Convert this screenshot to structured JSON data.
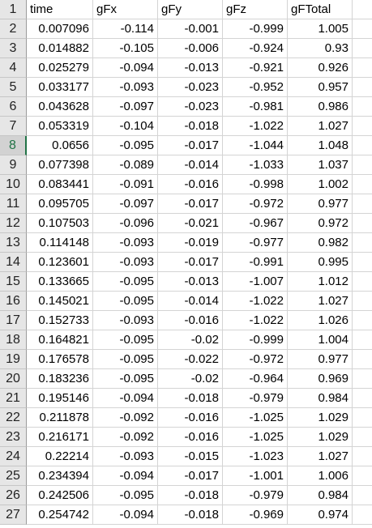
{
  "sheet": {
    "headers": [
      "time",
      "gFx",
      "gFy",
      "gFz",
      "gFTotal"
    ],
    "header_row_number": "1",
    "selected_row": "8",
    "rows": [
      {
        "n": "2",
        "cells": [
          "0.007096",
          "-0.114",
          "-0.001",
          "-0.999",
          "1.005"
        ]
      },
      {
        "n": "3",
        "cells": [
          "0.014882",
          "-0.105",
          "-0.006",
          "-0.924",
          "0.93"
        ]
      },
      {
        "n": "4",
        "cells": [
          "0.025279",
          "-0.094",
          "-0.013",
          "-0.921",
          "0.926"
        ]
      },
      {
        "n": "5",
        "cells": [
          "0.033177",
          "-0.093",
          "-0.023",
          "-0.952",
          "0.957"
        ]
      },
      {
        "n": "6",
        "cells": [
          "0.043628",
          "-0.097",
          "-0.023",
          "-0.981",
          "0.986"
        ]
      },
      {
        "n": "7",
        "cells": [
          "0.053319",
          "-0.104",
          "-0.018",
          "-1.022",
          "1.027"
        ]
      },
      {
        "n": "8",
        "cells": [
          "0.0656",
          "-0.095",
          "-0.017",
          "-1.044",
          "1.048"
        ]
      },
      {
        "n": "9",
        "cells": [
          "0.077398",
          "-0.089",
          "-0.014",
          "-1.033",
          "1.037"
        ]
      },
      {
        "n": "10",
        "cells": [
          "0.083441",
          "-0.091",
          "-0.016",
          "-0.998",
          "1.002"
        ]
      },
      {
        "n": "11",
        "cells": [
          "0.095705",
          "-0.097",
          "-0.017",
          "-0.972",
          "0.977"
        ]
      },
      {
        "n": "12",
        "cells": [
          "0.107503",
          "-0.096",
          "-0.021",
          "-0.967",
          "0.972"
        ]
      },
      {
        "n": "13",
        "cells": [
          "0.114148",
          "-0.093",
          "-0.019",
          "-0.977",
          "0.982"
        ]
      },
      {
        "n": "14",
        "cells": [
          "0.123601",
          "-0.093",
          "-0.017",
          "-0.991",
          "0.995"
        ]
      },
      {
        "n": "15",
        "cells": [
          "0.133665",
          "-0.095",
          "-0.013",
          "-1.007",
          "1.012"
        ]
      },
      {
        "n": "16",
        "cells": [
          "0.145021",
          "-0.095",
          "-0.014",
          "-1.022",
          "1.027"
        ]
      },
      {
        "n": "17",
        "cells": [
          "0.152733",
          "-0.093",
          "-0.016",
          "-1.022",
          "1.026"
        ]
      },
      {
        "n": "18",
        "cells": [
          "0.164821",
          "-0.095",
          "-0.02",
          "-0.999",
          "1.004"
        ]
      },
      {
        "n": "19",
        "cells": [
          "0.176578",
          "-0.095",
          "-0.022",
          "-0.972",
          "0.977"
        ]
      },
      {
        "n": "20",
        "cells": [
          "0.183236",
          "-0.095",
          "-0.02",
          "-0.964",
          "0.969"
        ]
      },
      {
        "n": "21",
        "cells": [
          "0.195146",
          "-0.094",
          "-0.018",
          "-0.979",
          "0.984"
        ]
      },
      {
        "n": "22",
        "cells": [
          "0.211878",
          "-0.092",
          "-0.016",
          "-1.025",
          "1.029"
        ]
      },
      {
        "n": "23",
        "cells": [
          "0.216171",
          "-0.092",
          "-0.016",
          "-1.025",
          "1.029"
        ]
      },
      {
        "n": "24",
        "cells": [
          "0.22214",
          "-0.093",
          "-0.015",
          "-1.023",
          "1.027"
        ]
      },
      {
        "n": "25",
        "cells": [
          "0.234394",
          "-0.094",
          "-0.017",
          "-1.001",
          "1.006"
        ]
      },
      {
        "n": "26",
        "cells": [
          "0.242506",
          "-0.095",
          "-0.018",
          "-0.979",
          "0.984"
        ]
      },
      {
        "n": "27",
        "cells": [
          "0.254742",
          "-0.094",
          "-0.018",
          "-0.969",
          "0.974"
        ]
      }
    ]
  }
}
